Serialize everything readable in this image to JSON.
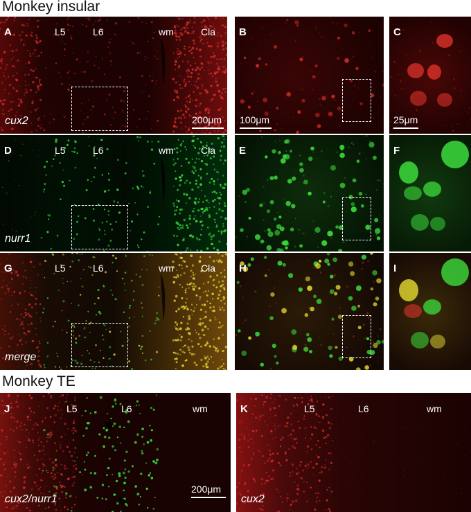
{
  "sections": {
    "insular_title": "Monkey insular",
    "te_title": "Monkey TE"
  },
  "panels": {
    "A": {
      "letter": "A",
      "layers": [
        "L5",
        "L6",
        "wm",
        "Cla"
      ],
      "stain": "cux2",
      "scale": "200μm"
    },
    "B": {
      "letter": "B",
      "scale": "100μm"
    },
    "C": {
      "letter": "C",
      "scale": "25μm"
    },
    "D": {
      "letter": "D",
      "layers": [
        "L5",
        "L6",
        "wm",
        "Cla"
      ],
      "stain": "nurr1"
    },
    "E": {
      "letter": "E"
    },
    "F": {
      "letter": "F"
    },
    "G": {
      "letter": "G",
      "layers": [
        "L5",
        "L6",
        "wm",
        "Cla"
      ],
      "stain": "merge"
    },
    "H": {
      "letter": "H"
    },
    "I": {
      "letter": "I"
    },
    "J": {
      "letter": "J",
      "layers": [
        "L5",
        "L6",
        "wm"
      ],
      "stain": "cux2/nurr1",
      "scale": "200μm"
    },
    "K": {
      "letter": "K",
      "layers": [
        "L5",
        "L6",
        "wm"
      ],
      "stain": "cux2"
    }
  },
  "colors": {
    "cux2_red": "#e8342c",
    "nurr1_green": "#3cdc3c",
    "merge_yellow": "#e6dc32"
  }
}
